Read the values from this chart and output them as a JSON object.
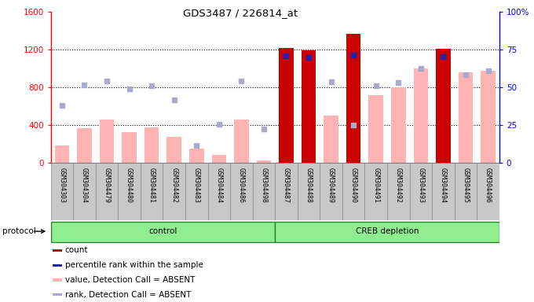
{
  "title": "GDS3487 / 226814_at",
  "samples": [
    "GSM304303",
    "GSM304304",
    "GSM304479",
    "GSM304480",
    "GSM304481",
    "GSM304482",
    "GSM304483",
    "GSM304484",
    "GSM304486",
    "GSM304498",
    "GSM304487",
    "GSM304488",
    "GSM304489",
    "GSM304490",
    "GSM304491",
    "GSM304492",
    "GSM304493",
    "GSM304494",
    "GSM304495",
    "GSM304496"
  ],
  "count_values": [
    0,
    0,
    0,
    0,
    0,
    0,
    0,
    0,
    0,
    0,
    1220,
    1195,
    0,
    1370,
    0,
    0,
    0,
    1210,
    0,
    0
  ],
  "absent_bar_values": [
    190,
    370,
    460,
    330,
    380,
    280,
    155,
    90,
    460,
    30,
    0,
    0,
    500,
    0,
    720,
    800,
    1000,
    0,
    960,
    975
  ],
  "rank_absent_values": [
    610,
    830,
    870,
    790,
    820,
    670,
    190,
    410,
    870,
    360,
    0,
    0,
    860,
    400,
    820,
    850,
    1000,
    0,
    940,
    980
  ],
  "percentile_on_count": [
    0,
    0,
    0,
    0,
    0,
    0,
    0,
    0,
    0,
    0,
    1140,
    1120,
    0,
    1145,
    0,
    0,
    0,
    1130,
    0,
    0
  ],
  "groups": [
    {
      "label": "control",
      "start": 0,
      "end": 9
    },
    {
      "label": "CREB depletion",
      "start": 10,
      "end": 19
    }
  ],
  "ylim_left": [
    0,
    1600
  ],
  "ylim_right": [
    0,
    100
  ],
  "left_yticks": [
    0,
    400,
    800,
    1200,
    1600
  ],
  "right_yticks": [
    0,
    25,
    50,
    75,
    100
  ],
  "right_ytick_labels": [
    "0",
    "25",
    "50",
    "75",
    "100%"
  ],
  "bar_color_count": "#CC0000",
  "bar_color_absent": "#FFB3B3",
  "dot_color_rank_absent": "#AAAACC",
  "dot_color_percentile": "#2222AA",
  "legend_items": [
    {
      "color": "#CC0000",
      "label": "count"
    },
    {
      "color": "#2222AA",
      "label": "percentile rank within the sample"
    },
    {
      "color": "#FFB3B3",
      "label": "value, Detection Call = ABSENT"
    },
    {
      "color": "#AAAACC",
      "label": "rank, Detection Call = ABSENT"
    }
  ],
  "protocol_label": "protocol",
  "group_bg_color": "#90EE90",
  "group_border_color": "#228822",
  "tick_bg_color": "#C8C8C8",
  "tick_border_color": "#888888"
}
